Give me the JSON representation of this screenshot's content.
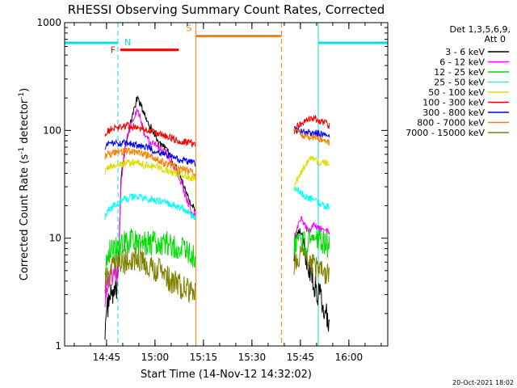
{
  "chart_data": {
    "type": "line",
    "title": "RHESSI Observing Summary Count Rates, Corrected",
    "xlabel": "Start Time (14-Nov-12 14:32:02)",
    "ylabel_main": "Corrected Count Rate (s",
    "ylabel_sup1": "-1",
    "ylabel_mid": " detector",
    "ylabel_sup2": "-1",
    "ylabel_end": ")",
    "yscale": "log",
    "ylim": [
      1,
      1000
    ],
    "xlim_minutes": [
      0,
      100
    ],
    "xticks": [
      {
        "label": "14:45",
        "minutes": 12.97
      },
      {
        "label": "15:00",
        "minutes": 27.97
      },
      {
        "label": "15:15",
        "minutes": 42.97
      },
      {
        "label": "15:30",
        "minutes": 57.97
      },
      {
        "label": "15:45",
        "minutes": 72.97
      },
      {
        "label": "16:00",
        "minutes": 87.97
      }
    ],
    "yticks": [
      {
        "label": "1",
        "value": 1
      },
      {
        "label": "10",
        "value": 10
      },
      {
        "label": "100",
        "value": 100
      },
      {
        "label": "1000",
        "value": 1000
      }
    ],
    "legend": {
      "header1": "Det 1,3,5,6,9,",
      "header2": "Att 0",
      "placement": "right",
      "entries": [
        {
          "label": "3 - 6 keV",
          "color": "#000000"
        },
        {
          "label": "6 - 12 keV",
          "color": "#ff00ff"
        },
        {
          "label": "12 - 25 keV",
          "color": "#00dd00"
        },
        {
          "label": "25 - 50 keV",
          "color": "#00ffff"
        },
        {
          "label": "50 - 100 keV",
          "color": "#dddd00"
        },
        {
          "label": "100 - 300 keV",
          "color": "#ff0000"
        },
        {
          "label": "300 - 800 keV",
          "color": "#0000ff"
        },
        {
          "label": "800 - 7000 keV",
          "color": "#ff8000"
        },
        {
          "label": "7000 - 15000 keV",
          "color": "#808000"
        }
      ]
    },
    "flags": {
      "night_color": "#00e0e0",
      "flare_color": "#ff0000",
      "saa_color": "#ff8000",
      "night_label": "N",
      "flare_label": "F",
      "saa_label": "S",
      "night_intervals_minutes": [
        [
          0,
          16.5
        ],
        [
          78.5,
          100
        ]
      ],
      "flare_interval_minutes": [
        17.2,
        35.3
      ],
      "saa_interval_minutes": [
        40.6,
        67.1
      ],
      "night_level": 650,
      "flare_level": 560,
      "saa_level": 750
    },
    "series": [
      {
        "name": "3 - 6 keV",
        "color": "#000000",
        "segments": [
          {
            "t": [
              12.5,
              13.5,
              14.5,
              15.5,
              16.5,
              17.5,
              18.5,
              19.5,
              20.5,
              21.5,
              22.5,
              23.5,
              24.5,
              25.5,
              26.5,
              27.5,
              28.5,
              29.5,
              30.5,
              31.5,
              32.5,
              33.5,
              34.5,
              35.5,
              36.5,
              37.5,
              38.5,
              39.5,
              40.5
            ],
            "v": [
              1.5,
              2.5,
              3,
              3,
              3.5,
              40,
              65,
              85,
              120,
              160,
              200,
              175,
              145,
              125,
              110,
              95,
              85,
              75,
              70,
              65,
              60,
              50,
              45,
              40,
              33,
              28,
              24,
              20,
              18
            ]
          },
          {
            "t": [
              71.0,
              72.0,
              73.0,
              74.0,
              75.0,
              76.0,
              77.0,
              78.0,
              79.0,
              80.0,
              81.0,
              82.0
            ],
            "v": [
              8,
              11,
              12,
              8,
              6,
              5,
              4,
              3,
              3,
              2.5,
              2,
              1.5
            ]
          }
        ]
      },
      {
        "name": "6 - 12 keV",
        "color": "#ff00ff",
        "segments": [
          {
            "t": [
              12.5,
              13.5,
              14.5,
              15.5,
              16.5,
              17.5,
              18.5,
              19.5,
              20.5,
              21.5,
              22.5,
              23.5,
              24.5,
              25.5,
              26.5,
              27.5,
              28.5,
              29.5,
              30.5,
              31.5,
              32.5,
              33.5,
              34.5,
              35.5,
              36.5,
              37.5,
              38.5,
              39.5,
              40.5
            ],
            "v": [
              3,
              4,
              4.5,
              5,
              5,
              35,
              60,
              90,
              110,
              130,
              150,
              130,
              95,
              85,
              80,
              78,
              75,
              68,
              65,
              62,
              55,
              48,
              42,
              37,
              30,
              24,
              20,
              17,
              17
            ]
          },
          {
            "t": [
              71.0,
              72.0,
              73.0,
              74.0,
              75.0,
              76.0,
              77.0,
              78.0,
              79.0,
              80.0,
              81.0,
              82.0
            ],
            "v": [
              10,
              13,
              15,
              14,
              12,
              12,
              14,
              13,
              12,
              13,
              12,
              11
            ]
          }
        ]
      },
      {
        "name": "12 - 25 keV",
        "color": "#00dd00",
        "segments": [
          {
            "t": [
              12.5,
              13.5,
              14.5,
              15.5,
              16.5,
              17.5,
              18.5,
              19.5,
              20.5,
              21.5,
              22.5,
              23.5,
              24.5,
              25.5,
              26.5,
              27.5,
              28.5,
              29.5,
              30.5,
              31.5,
              32.5,
              33.5,
              34.5,
              35.5,
              36.5,
              37.5,
              38.5,
              39.5,
              40.5
            ],
            "v": [
              6,
              7.5,
              8,
              8,
              8,
              8.5,
              9,
              9,
              9.5,
              9.5,
              9,
              9,
              9,
              9,
              9,
              9,
              9,
              9,
              9,
              9,
              8.5,
              8.5,
              8.5,
              8,
              8,
              7.5,
              7.5,
              7,
              7
            ]
          },
          {
            "t": [
              71.0,
              72.0,
              73.0,
              74.0,
              75.0,
              76.0,
              77.0,
              78.0,
              79.0,
              80.0,
              81.0,
              82.0
            ],
            "v": [
              9,
              10,
              10,
              9,
              9,
              10,
              10,
              10,
              9,
              9,
              9,
              8
            ]
          }
        ]
      },
      {
        "name": "25 - 50 keV",
        "color": "#00ffff",
        "segments": [
          {
            "t": [
              12.5,
              13.5,
              14.5,
              15.5,
              16.5,
              17.5,
              18.5,
              19.5,
              20.5,
              21.5,
              22.5,
              23.5,
              24.5,
              25.5,
              26.5,
              27.5,
              28.5,
              29.5,
              30.5,
              31.5,
              32.5,
              33.5,
              34.5,
              35.5,
              36.5,
              37.5,
              38.5,
              39.5,
              40.5
            ],
            "v": [
              16,
              18,
              19,
              20,
              21,
              22,
              23,
              23,
              24,
              24,
              24,
              24,
              23,
              23,
              23,
              23,
              22,
              22,
              22,
              21,
              21,
              20,
              20,
              19,
              19,
              18,
              17,
              16,
              15
            ]
          },
          {
            "t": [
              71.0,
              72.0,
              73.0,
              74.0,
              75.0,
              76.0,
              77.0,
              78.0,
              79.0,
              80.0,
              81.0,
              82.0
            ],
            "v": [
              30,
              28,
              27,
              25,
              24,
              23,
              24,
              22,
              21,
              20,
              20,
              19
            ]
          }
        ]
      },
      {
        "name": "50 - 100 keV",
        "color": "#dddd00",
        "segments": [
          {
            "t": [
              12.5,
              13.5,
              14.5,
              15.5,
              16.5,
              17.5,
              18.5,
              19.5,
              20.5,
              21.5,
              22.5,
              23.5,
              24.5,
              25.5,
              26.5,
              27.5,
              28.5,
              29.5,
              30.5,
              31.5,
              32.5,
              33.5,
              34.5,
              35.5,
              36.5,
              37.5,
              38.5,
              39.5,
              40.5
            ],
            "v": [
              42,
              45,
              46,
              47,
              48,
              48,
              49,
              50,
              50,
              50,
              50,
              49,
              48,
              48,
              47,
              46,
              46,
              45,
              44,
              43,
              42,
              41,
              40,
              40,
              39,
              38,
              37,
              36,
              36
            ]
          },
          {
            "t": [
              71.0,
              72.0,
              73.0,
              74.0,
              75.0,
              76.0,
              77.0,
              78.0,
              79.0,
              80.0,
              81.0,
              82.0
            ],
            "v": [
              30,
              35,
              40,
              45,
              50,
              55,
              55,
              52,
              50,
              50,
              50,
              50
            ]
          }
        ]
      },
      {
        "name": "100 - 300 keV",
        "color": "#ff0000",
        "segments": [
          {
            "t": [
              12.5,
              13.5,
              14.5,
              15.5,
              16.5,
              17.5,
              18.5,
              19.5,
              20.5,
              21.5,
              22.5,
              23.5,
              24.5,
              25.5,
              26.5,
              27.5,
              28.5,
              29.5,
              30.5,
              31.5,
              32.5,
              33.5,
              34.5,
              35.5,
              36.5,
              37.5,
              38.5,
              39.5,
              40.5
            ],
            "v": [
              95,
              100,
              102,
              104,
              106,
              108,
              110,
              110,
              110,
              108,
              107,
              105,
              103,
              100,
              98,
              96,
              94,
              92,
              90,
              88,
              86,
              84,
              82,
              80,
              79,
              78,
              77,
              76,
              75
            ]
          },
          {
            "t": [
              71.0,
              72.0,
              73.0,
              74.0,
              75.0,
              76.0,
              77.0,
              78.0,
              79.0,
              80.0,
              81.0,
              82.0
            ],
            "v": [
              100,
              110,
              115,
              120,
              125,
              130,
              130,
              125,
              120,
              118,
              115,
              110
            ]
          }
        ]
      },
      {
        "name": "300 - 800 keV",
        "color": "#0000ff",
        "segments": [
          {
            "t": [
              12.5,
              13.5,
              14.5,
              15.5,
              16.5,
              17.5,
              18.5,
              19.5,
              20.5,
              21.5,
              22.5,
              23.5,
              24.5,
              25.5,
              26.5,
              27.5,
              28.5,
              29.5,
              30.5,
              31.5,
              32.5,
              33.5,
              34.5,
              35.5,
              36.5,
              37.5,
              38.5,
              39.5,
              40.5
            ],
            "v": [
              72,
              74,
              75,
              75,
              76,
              76,
              76,
              75,
              75,
              74,
              73,
              72,
              71,
              70,
              68,
              66,
              64,
              62,
              60,
              59,
              58,
              56,
              55,
              54,
              53,
              52,
              51,
              50,
              49
            ]
          },
          {
            "t": [
              71.0,
              72.0,
              73.0,
              74.0,
              75.0,
              76.0,
              77.0,
              78.0,
              79.0,
              80.0,
              81.0,
              82.0
            ],
            "v": [
              105,
              100,
              98,
              97,
              96,
              95,
              95,
              94,
              92,
              90,
              88,
              85
            ]
          }
        ]
      },
      {
        "name": "800 - 7000 keV",
        "color": "#ff8000",
        "segments": [
          {
            "t": [
              12.5,
              13.5,
              14.5,
              15.5,
              16.5,
              17.5,
              18.5,
              19.5,
              20.5,
              21.5,
              22.5,
              23.5,
              24.5,
              25.5,
              26.5,
              27.5,
              28.5,
              29.5,
              30.5,
              31.5,
              32.5,
              33.5,
              34.5,
              35.5,
              36.5,
              37.5,
              38.5,
              39.5,
              40.5
            ],
            "v": [
              58,
              60,
              61,
              62,
              63,
              63,
              64,
              64,
              64,
              63,
              62,
              61,
              60,
              59,
              58,
              56,
              54,
              52,
              50,
              49,
              48,
              47,
              46,
              45,
              44,
              43,
              42,
              41,
              40
            ]
          },
          {
            "t": [
              71.0,
              72.0,
              73.0,
              74.0,
              75.0,
              76.0,
              77.0,
              78.0,
              79.0,
              80.0,
              81.0,
              82.0
            ],
            "v": [
              105,
              100,
              92,
              90,
              88,
              86,
              85,
              84,
              82,
              80,
              78,
              76
            ]
          }
        ]
      },
      {
        "name": "7000 - 15000 keV",
        "color": "#808000",
        "segments": [
          {
            "t": [
              12.5,
              13.5,
              14.5,
              15.5,
              16.5,
              17.5,
              18.5,
              19.5,
              20.5,
              21.5,
              22.5,
              23.5,
              24.5,
              25.5,
              26.5,
              27.5,
              28.5,
              29.5,
              30.5,
              31.5,
              32.5,
              33.5,
              34.5,
              35.5,
              36.5,
              37.5,
              38.5,
              39.5,
              40.5
            ],
            "v": [
              4,
              4.5,
              5,
              5.5,
              6,
              6,
              6,
              6.5,
              6.5,
              6.5,
              6.5,
              6,
              6,
              6,
              5.5,
              5.5,
              5,
              5,
              4.5,
              4.5,
              4,
              4,
              3.8,
              3.6,
              3.5,
              3.3,
              3.2,
              3,
              3
            ]
          },
          {
            "t": [
              71.0,
              72.0,
              73.0,
              74.0,
              75.0,
              76.0,
              77.0,
              78.0,
              79.0,
              80.0,
              81.0,
              82.0
            ],
            "v": [
              6,
              6.5,
              7,
              6.5,
              6,
              5.5,
              5.5,
              5,
              5,
              4.8,
              4.6,
              4.5
            ]
          }
        ]
      }
    ]
  },
  "footer": {
    "date_stamp": "20-Oct-2021 18:02"
  }
}
